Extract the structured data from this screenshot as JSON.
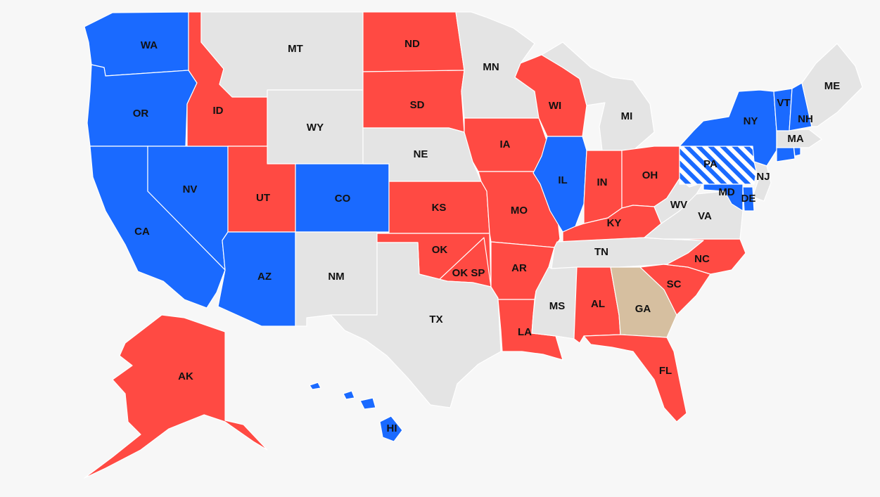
{
  "colors": {
    "dem": "#1a6aff",
    "rep": "#ff4a43",
    "none": "#e4e4e4",
    "tossup": "#d6bfa0",
    "background": "#f7f7f7"
  },
  "states": [
    {
      "code": "WA",
      "status": "dem"
    },
    {
      "code": "OR",
      "status": "dem"
    },
    {
      "code": "CA",
      "status": "dem"
    },
    {
      "code": "NV",
      "status": "dem"
    },
    {
      "code": "ID",
      "status": "rep"
    },
    {
      "code": "MT",
      "status": "none"
    },
    {
      "code": "WY",
      "status": "none"
    },
    {
      "code": "UT",
      "status": "rep"
    },
    {
      "code": "CO",
      "status": "dem"
    },
    {
      "code": "AZ",
      "status": "dem"
    },
    {
      "code": "NM",
      "status": "none"
    },
    {
      "code": "ND",
      "status": "rep"
    },
    {
      "code": "SD",
      "status": "rep"
    },
    {
      "code": "NE",
      "status": "none"
    },
    {
      "code": "KS",
      "status": "rep"
    },
    {
      "code": "OK",
      "status": "rep"
    },
    {
      "code": "OK SP",
      "status": "rep"
    },
    {
      "code": "TX",
      "status": "none"
    },
    {
      "code": "MN",
      "status": "none"
    },
    {
      "code": "IA",
      "status": "rep"
    },
    {
      "code": "MO",
      "status": "rep"
    },
    {
      "code": "AR",
      "status": "rep"
    },
    {
      "code": "LA",
      "status": "rep"
    },
    {
      "code": "WI",
      "status": "rep"
    },
    {
      "code": "IL",
      "status": "dem"
    },
    {
      "code": "MI",
      "status": "none"
    },
    {
      "code": "IN",
      "status": "rep"
    },
    {
      "code": "OH",
      "status": "rep"
    },
    {
      "code": "KY",
      "status": "rep"
    },
    {
      "code": "TN",
      "status": "none"
    },
    {
      "code": "MS",
      "status": "none"
    },
    {
      "code": "AL",
      "status": "rep"
    },
    {
      "code": "GA",
      "status": "tossup"
    },
    {
      "code": "FL",
      "status": "rep"
    },
    {
      "code": "SC",
      "status": "rep"
    },
    {
      "code": "NC",
      "status": "rep"
    },
    {
      "code": "VA",
      "status": "none"
    },
    {
      "code": "WV",
      "status": "none"
    },
    {
      "code": "PA",
      "status": "dem-hatched"
    },
    {
      "code": "NY",
      "status": "dem"
    },
    {
      "code": "NJ",
      "status": "none"
    },
    {
      "code": "DE",
      "status": "dem"
    },
    {
      "code": "MD",
      "status": "dem"
    },
    {
      "code": "CT",
      "status": "dem"
    },
    {
      "code": "RI",
      "status": "dem"
    },
    {
      "code": "MA",
      "status": "none"
    },
    {
      "code": "VT",
      "status": "dem"
    },
    {
      "code": "NH",
      "status": "dem"
    },
    {
      "code": "ME",
      "status": "none"
    },
    {
      "code": "AK",
      "status": "rep"
    },
    {
      "code": "HI",
      "status": "dem"
    }
  ],
  "labels": {
    "WA": "WA",
    "OR": "OR",
    "CA": "CA",
    "NV": "NV",
    "ID": "ID",
    "MT": "MT",
    "WY": "WY",
    "UT": "UT",
    "CO": "CO",
    "AZ": "AZ",
    "NM": "NM",
    "ND": "ND",
    "SD": "SD",
    "NE": "NE",
    "KS": "KS",
    "OK": "OK",
    "OKSP": "OK SP",
    "TX": "TX",
    "MN": "MN",
    "IA": "IA",
    "MO": "MO",
    "AR": "AR",
    "LA": "LA",
    "WI": "WI",
    "IL": "IL",
    "MI": "MI",
    "IN": "IN",
    "OH": "OH",
    "KY": "KY",
    "TN": "TN",
    "MS": "MS",
    "AL": "AL",
    "GA": "GA",
    "FL": "FL",
    "SC": "SC",
    "NC": "NC",
    "VA": "VA",
    "WV": "WV",
    "PA": "PA",
    "NY": "NY",
    "NJ": "NJ",
    "DE": "DE",
    "MD": "MD",
    "MA": "MA",
    "VT": "VT",
    "NH": "NH",
    "ME": "ME",
    "AK": "AK",
    "HI": "HI"
  }
}
